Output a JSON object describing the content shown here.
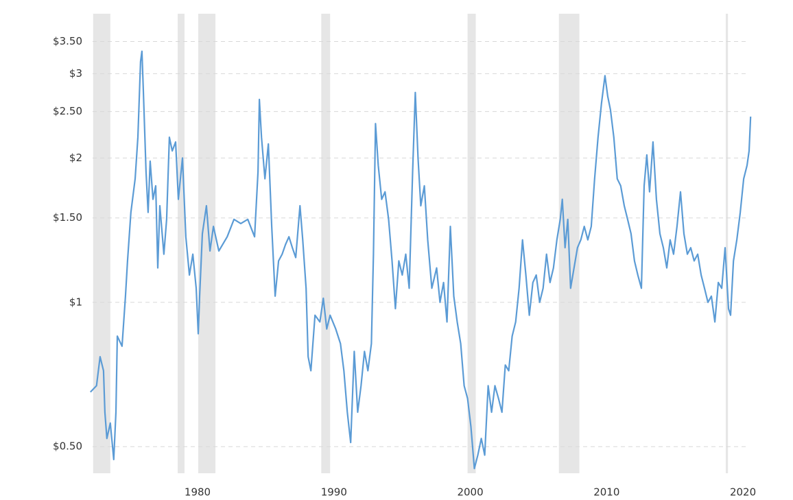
{
  "chart_data": {
    "type": "line",
    "log_y": true,
    "grid": true,
    "color": "#5b9bd5",
    "shade_color": "#e6e6e6",
    "xlim": [
      1972.1,
      2020.6
    ],
    "xticks": [
      1980,
      1990,
      2000,
      2010,
      2020
    ],
    "ylim": [
      0.44,
      4.0
    ],
    "yticks": [
      {
        "value": 0.5,
        "label": "$0.50"
      },
      {
        "value": 1,
        "label": "$1"
      },
      {
        "value": 1.5,
        "label": "$1.50"
      },
      {
        "value": 2,
        "label": "$2"
      },
      {
        "value": 2.5,
        "label": "$2.50"
      },
      {
        "value": 3,
        "label": "$3"
      },
      {
        "value": 3.5,
        "label": "$3.50"
      }
    ],
    "shaded_periods": [
      [
        1972.34,
        1973.6
      ],
      [
        1978.54,
        1979.04
      ],
      [
        1980.05,
        1981.31
      ],
      [
        1989.07,
        1989.72
      ],
      [
        1999.8,
        2000.4
      ],
      [
        2006.5,
        2008.0
      ],
      [
        2018.74,
        2018.9
      ]
    ],
    "x": [
      1972.14,
      1972.59,
      1972.85,
      1973.1,
      1973.2,
      1973.35,
      1973.6,
      1973.85,
      1974.01,
      1974.11,
      1974.46,
      1974.71,
      1974.86,
      1975.11,
      1975.42,
      1975.62,
      1975.82,
      1975.92,
      1976.02,
      1976.22,
      1976.37,
      1976.52,
      1976.73,
      1976.93,
      1977.08,
      1977.23,
      1977.53,
      1977.73,
      1977.93,
      1978.14,
      1978.39,
      1978.59,
      1978.89,
      1979.14,
      1979.4,
      1979.65,
      1979.9,
      1980.05,
      1980.15,
      1980.35,
      1980.65,
      1980.91,
      1981.16,
      1981.56,
      1982.17,
      1982.67,
      1983.17,
      1983.68,
      1984.18,
      1984.43,
      1984.53,
      1984.69,
      1984.94,
      1985.19,
      1985.44,
      1985.69,
      1985.94,
      1986.2,
      1986.45,
      1986.7,
      1986.95,
      1987.2,
      1987.51,
      1987.71,
      1987.96,
      1988.11,
      1988.31,
      1988.61,
      1988.97,
      1989.22,
      1989.47,
      1989.72,
      1990.13,
      1990.48,
      1990.73,
      1990.98,
      1991.23,
      1991.49,
      1991.74,
      1991.99,
      1992.24,
      1992.49,
      1992.75,
      1992.9,
      1993.05,
      1993.25,
      1993.5,
      1993.75,
      1994.01,
      1994.26,
      1994.51,
      1994.76,
      1995.01,
      1995.27,
      1995.52,
      1995.77,
      1995.97,
      1996.17,
      1996.37,
      1996.63,
      1996.88,
      1997.18,
      1997.53,
      1997.78,
      1998.04,
      1998.29,
      1998.54,
      1998.79,
      1999.04,
      1999.3,
      1999.55,
      1999.8,
      2000.05,
      2000.3,
      2000.55,
      2000.81,
      2001.06,
      2001.31,
      2001.56,
      2001.81,
      2002.07,
      2002.32,
      2002.57,
      2002.82,
      2003.07,
      2003.33,
      2003.58,
      2003.83,
      2004.08,
      2004.33,
      2004.59,
      2004.84,
      2005.09,
      2005.34,
      2005.59,
      2005.85,
      2006.1,
      2006.35,
      2006.6,
      2006.75,
      2006.95,
      2007.15,
      2007.36,
      2007.61,
      2007.86,
      2008.11,
      2008.36,
      2008.62,
      2008.87,
      2009.12,
      2009.37,
      2009.62,
      2009.88,
      2010.08,
      2010.28,
      2010.53,
      2010.78,
      2011.03,
      2011.29,
      2011.54,
      2011.79,
      2012.04,
      2012.29,
      2012.55,
      2012.75,
      2012.95,
      2013.15,
      2013.4,
      2013.65,
      2013.91,
      2014.16,
      2014.41,
      2014.66,
      2014.91,
      2015.16,
      2015.42,
      2015.67,
      2015.92,
      2016.17,
      2016.42,
      2016.68,
      2016.93,
      2017.18,
      2017.43,
      2017.68,
      2017.94,
      2018.19,
      2018.44,
      2018.69,
      2018.94,
      2019.09,
      2019.3,
      2019.55,
      2019.8,
      2020.05,
      2020.3,
      2020.45,
      2020.56
    ],
    "values": [
      0.65,
      0.67,
      0.77,
      0.72,
      0.59,
      0.52,
      0.56,
      0.47,
      0.59,
      0.85,
      0.81,
      1.03,
      1.22,
      1.54,
      1.81,
      2.21,
      3.18,
      3.34,
      2.78,
      1.87,
      1.54,
      1.97,
      1.64,
      1.75,
      1.18,
      1.59,
      1.26,
      1.49,
      2.21,
      2.07,
      2.16,
      1.64,
      2.0,
      1.37,
      1.14,
      1.26,
      1.07,
      0.86,
      1.03,
      1.39,
      1.59,
      1.28,
      1.44,
      1.28,
      1.37,
      1.49,
      1.46,
      1.49,
      1.37,
      1.87,
      2.65,
      2.21,
      1.81,
      2.14,
      1.44,
      1.03,
      1.22,
      1.26,
      1.32,
      1.37,
      1.3,
      1.24,
      1.59,
      1.35,
      1.07,
      0.77,
      0.72,
      0.94,
      0.91,
      1.02,
      0.88,
      0.94,
      0.88,
      0.82,
      0.72,
      0.59,
      0.51,
      0.79,
      0.59,
      0.67,
      0.79,
      0.72,
      0.82,
      1.26,
      2.36,
      1.93,
      1.64,
      1.7,
      1.49,
      1.22,
      0.97,
      1.22,
      1.14,
      1.26,
      1.07,
      1.87,
      2.74,
      2.0,
      1.59,
      1.75,
      1.35,
      1.07,
      1.18,
      1.0,
      1.1,
      0.91,
      1.44,
      1.03,
      0.91,
      0.82,
      0.67,
      0.63,
      0.55,
      0.45,
      0.48,
      0.52,
      0.48,
      0.67,
      0.59,
      0.67,
      0.63,
      0.59,
      0.74,
      0.72,
      0.85,
      0.91,
      1.07,
      1.35,
      1.14,
      0.94,
      1.1,
      1.14,
      1.0,
      1.07,
      1.26,
      1.1,
      1.18,
      1.35,
      1.49,
      1.64,
      1.3,
      1.49,
      1.07,
      1.18,
      1.3,
      1.35,
      1.44,
      1.35,
      1.44,
      1.81,
      2.21,
      2.6,
      2.97,
      2.69,
      2.52,
      2.21,
      1.81,
      1.75,
      1.59,
      1.49,
      1.39,
      1.22,
      1.14,
      1.07,
      1.75,
      2.03,
      1.7,
      2.16,
      1.64,
      1.39,
      1.3,
      1.18,
      1.35,
      1.26,
      1.44,
      1.7,
      1.39,
      1.26,
      1.3,
      1.22,
      1.26,
      1.14,
      1.07,
      1.0,
      1.03,
      0.91,
      1.1,
      1.07,
      1.3,
      0.97,
      0.94,
      1.22,
      1.35,
      1.54,
      1.81,
      1.93,
      2.07,
      2.44
    ]
  }
}
